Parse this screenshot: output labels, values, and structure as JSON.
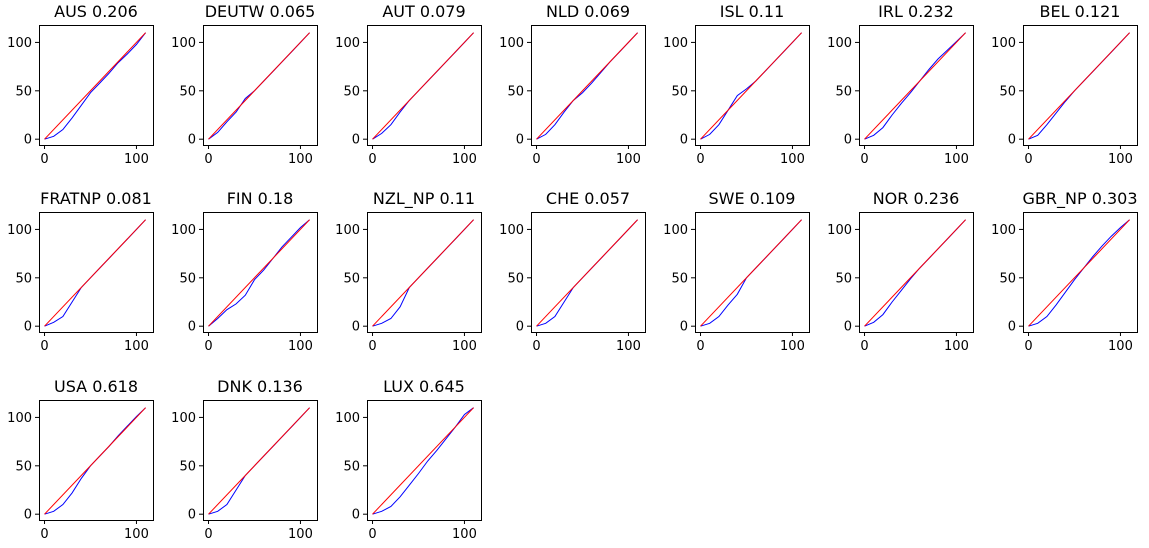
{
  "chart_data": [
    {
      "type": "line",
      "title": "AUS 0.206",
      "xlim": [
        -6,
        118
      ],
      "ylim": [
        -6,
        118
      ],
      "xticks": [
        0,
        100
      ],
      "yticks": [
        0,
        50,
        100
      ],
      "series": [
        {
          "name": "curve",
          "color": "#0000ff",
          "x": [
            0,
            10,
            20,
            30,
            40,
            50,
            60,
            70,
            80,
            90,
            100,
            110
          ],
          "y": [
            0,
            3,
            10,
            22,
            35,
            48,
            58,
            68,
            79,
            88,
            98,
            110
          ]
        },
        {
          "name": "equality",
          "color": "#ff0000",
          "x": [
            0,
            110
          ],
          "y": [
            0,
            110
          ]
        }
      ]
    },
    {
      "type": "line",
      "title": "DEUTW 0.065",
      "xlim": [
        -6,
        118
      ],
      "ylim": [
        -6,
        118
      ],
      "xticks": [
        0,
        100
      ],
      "yticks": [
        0,
        50,
        100
      ],
      "series": [
        {
          "name": "curve",
          "color": "#0000ff",
          "x": [
            0,
            10,
            20,
            30,
            40,
            50,
            60,
            70,
            80,
            90,
            100,
            110
          ],
          "y": [
            0,
            7,
            18,
            28,
            42,
            50,
            60,
            70,
            80,
            90,
            100,
            110
          ]
        },
        {
          "name": "equality",
          "color": "#ff0000",
          "x": [
            0,
            110
          ],
          "y": [
            0,
            110
          ]
        }
      ]
    },
    {
      "type": "line",
      "title": "AUT 0.079",
      "xlim": [
        -6,
        118
      ],
      "ylim": [
        -6,
        118
      ],
      "xticks": [
        0,
        100
      ],
      "yticks": [
        0,
        50,
        100
      ],
      "series": [
        {
          "name": "curve",
          "color": "#0000ff",
          "x": [
            0,
            10,
            20,
            30,
            40,
            50,
            60,
            70,
            80,
            90,
            100,
            110
          ],
          "y": [
            0,
            6,
            15,
            28,
            40,
            50,
            60,
            70,
            80,
            90,
            100,
            110
          ]
        },
        {
          "name": "equality",
          "color": "#ff0000",
          "x": [
            0,
            110
          ],
          "y": [
            0,
            110
          ]
        }
      ]
    },
    {
      "type": "line",
      "title": "NLD 0.069",
      "xlim": [
        -6,
        118
      ],
      "ylim": [
        -6,
        118
      ],
      "xticks": [
        0,
        100
      ],
      "yticks": [
        0,
        50,
        100
      ],
      "series": [
        {
          "name": "curve",
          "color": "#0000ff",
          "x": [
            0,
            10,
            20,
            30,
            40,
            50,
            60,
            70,
            80,
            90,
            100,
            110
          ],
          "y": [
            0,
            5,
            15,
            28,
            40,
            48,
            58,
            69,
            80,
            90,
            100,
            110
          ]
        },
        {
          "name": "equality",
          "color": "#ff0000",
          "x": [
            0,
            110
          ],
          "y": [
            0,
            110
          ]
        }
      ]
    },
    {
      "type": "line",
      "title": "ISL 0.11",
      "xlim": [
        -6,
        118
      ],
      "ylim": [
        -6,
        118
      ],
      "xticks": [
        0,
        100
      ],
      "yticks": [
        0,
        50,
        100
      ],
      "series": [
        {
          "name": "curve",
          "color": "#0000ff",
          "x": [
            0,
            10,
            20,
            30,
            40,
            50,
            60,
            70,
            80,
            90,
            100,
            110
          ],
          "y": [
            0,
            5,
            15,
            30,
            45,
            52,
            60,
            70,
            80,
            90,
            100,
            110
          ]
        },
        {
          "name": "equality",
          "color": "#ff0000",
          "x": [
            0,
            110
          ],
          "y": [
            0,
            110
          ]
        }
      ]
    },
    {
      "type": "line",
      "title": "IRL 0.232",
      "xlim": [
        -6,
        118
      ],
      "ylim": [
        -6,
        118
      ],
      "xticks": [
        0,
        100
      ],
      "yticks": [
        0,
        50,
        100
      ],
      "series": [
        {
          "name": "curve",
          "color": "#0000ff",
          "x": [
            0,
            10,
            20,
            30,
            40,
            50,
            60,
            70,
            80,
            90,
            100,
            110
          ],
          "y": [
            0,
            4,
            12,
            25,
            37,
            48,
            60,
            72,
            83,
            92,
            101,
            110
          ]
        },
        {
          "name": "equality",
          "color": "#ff0000",
          "x": [
            0,
            110
          ],
          "y": [
            0,
            110
          ]
        }
      ]
    },
    {
      "type": "line",
      "title": "BEL 0.121",
      "xlim": [
        -6,
        118
      ],
      "ylim": [
        -6,
        118
      ],
      "xticks": [
        0,
        100
      ],
      "yticks": [
        0,
        50,
        100
      ],
      "series": [
        {
          "name": "curve",
          "color": "#0000ff",
          "x": [
            0,
            10,
            20,
            30,
            40,
            50,
            60,
            70,
            80,
            90,
            100,
            110
          ],
          "y": [
            0,
            4,
            15,
            27,
            39,
            50,
            60,
            70,
            80,
            90,
            100,
            110
          ]
        },
        {
          "name": "equality",
          "color": "#ff0000",
          "x": [
            0,
            110
          ],
          "y": [
            0,
            110
          ]
        }
      ]
    },
    {
      "type": "line",
      "title": "FRATNP 0.081",
      "xlim": [
        -6,
        118
      ],
      "ylim": [
        -6,
        118
      ],
      "xticks": [
        0,
        100
      ],
      "yticks": [
        0,
        50,
        100
      ],
      "series": [
        {
          "name": "curve",
          "color": "#0000ff",
          "x": [
            0,
            10,
            20,
            30,
            40,
            50,
            60,
            70,
            80,
            90,
            100,
            110
          ],
          "y": [
            0,
            4,
            10,
            25,
            40,
            50,
            60,
            70,
            80,
            90,
            100,
            110
          ]
        },
        {
          "name": "equality",
          "color": "#ff0000",
          "x": [
            0,
            110
          ],
          "y": [
            0,
            110
          ]
        }
      ]
    },
    {
      "type": "line",
      "title": "FIN 0.18",
      "xlim": [
        -6,
        118
      ],
      "ylim": [
        -6,
        118
      ],
      "xticks": [
        0,
        100
      ],
      "yticks": [
        0,
        50,
        100
      ],
      "series": [
        {
          "name": "curve",
          "color": "#0000ff",
          "x": [
            0,
            10,
            20,
            30,
            40,
            50,
            60,
            70,
            80,
            90,
            100,
            110
          ],
          "y": [
            0,
            8,
            17,
            23,
            32,
            48,
            58,
            70,
            82,
            92,
            102,
            110
          ]
        },
        {
          "name": "equality",
          "color": "#ff0000",
          "x": [
            0,
            110
          ],
          "y": [
            0,
            110
          ]
        }
      ]
    },
    {
      "type": "line",
      "title": "NZL_NP 0.11",
      "xlim": [
        -6,
        118
      ],
      "ylim": [
        -6,
        118
      ],
      "xticks": [
        0,
        100
      ],
      "yticks": [
        0,
        50,
        100
      ],
      "series": [
        {
          "name": "curve",
          "color": "#0000ff",
          "x": [
            0,
            10,
            20,
            30,
            40,
            50,
            60,
            70,
            80,
            90,
            100,
            110
          ],
          "y": [
            0,
            3,
            8,
            20,
            40,
            50,
            60,
            70,
            80,
            90,
            100,
            110
          ]
        },
        {
          "name": "equality",
          "color": "#ff0000",
          "x": [
            0,
            110
          ],
          "y": [
            0,
            110
          ]
        }
      ]
    },
    {
      "type": "line",
      "title": "CHE 0.057",
      "xlim": [
        -6,
        118
      ],
      "ylim": [
        -6,
        118
      ],
      "xticks": [
        0,
        100
      ],
      "yticks": [
        0,
        50,
        100
      ],
      "series": [
        {
          "name": "curve",
          "color": "#0000ff",
          "x": [
            0,
            10,
            20,
            30,
            40,
            50,
            60,
            70,
            80,
            90,
            100,
            110
          ],
          "y": [
            0,
            3,
            10,
            25,
            40,
            50,
            60,
            70,
            80,
            90,
            100,
            110
          ]
        },
        {
          "name": "equality",
          "color": "#ff0000",
          "x": [
            0,
            110
          ],
          "y": [
            0,
            110
          ]
        }
      ]
    },
    {
      "type": "line",
      "title": "SWE 0.109",
      "xlim": [
        -6,
        118
      ],
      "ylim": [
        -6,
        118
      ],
      "xticks": [
        0,
        100
      ],
      "yticks": [
        0,
        50,
        100
      ],
      "series": [
        {
          "name": "curve",
          "color": "#0000ff",
          "x": [
            0,
            10,
            20,
            30,
            40,
            50,
            60,
            70,
            80,
            90,
            100,
            110
          ],
          "y": [
            0,
            3,
            10,
            22,
            33,
            50,
            60,
            70,
            80,
            90,
            100,
            110
          ]
        },
        {
          "name": "equality",
          "color": "#ff0000",
          "x": [
            0,
            110
          ],
          "y": [
            0,
            110
          ]
        }
      ]
    },
    {
      "type": "line",
      "title": "NOR 0.236",
      "xlim": [
        -6,
        118
      ],
      "ylim": [
        -6,
        118
      ],
      "xticks": [
        0,
        100
      ],
      "yticks": [
        0,
        50,
        100
      ],
      "series": [
        {
          "name": "curve",
          "color": "#0000ff",
          "x": [
            0,
            10,
            20,
            30,
            40,
            50,
            60,
            70,
            80,
            90,
            100,
            110
          ],
          "y": [
            0,
            4,
            12,
            25,
            37,
            49,
            60,
            70,
            80,
            90,
            100,
            110
          ]
        },
        {
          "name": "equality",
          "color": "#ff0000",
          "x": [
            0,
            110
          ],
          "y": [
            0,
            110
          ]
        }
      ]
    },
    {
      "type": "line",
      "title": "GBR_NP 0.303",
      "xlim": [
        -6,
        118
      ],
      "ylim": [
        -6,
        118
      ],
      "xticks": [
        0,
        100
      ],
      "yticks": [
        0,
        50,
        100
      ],
      "series": [
        {
          "name": "curve",
          "color": "#0000ff",
          "x": [
            0,
            10,
            20,
            30,
            40,
            50,
            60,
            70,
            80,
            90,
            100,
            110
          ],
          "y": [
            0,
            3,
            10,
            22,
            35,
            48,
            60,
            72,
            83,
            93,
            102,
            110
          ]
        },
        {
          "name": "equality",
          "color": "#ff0000",
          "x": [
            0,
            110
          ],
          "y": [
            0,
            110
          ]
        }
      ]
    },
    {
      "type": "line",
      "title": "USA 0.618",
      "xlim": [
        -6,
        118
      ],
      "ylim": [
        -6,
        118
      ],
      "xticks": [
        0,
        100
      ],
      "yticks": [
        0,
        50,
        100
      ],
      "series": [
        {
          "name": "curve",
          "color": "#0000ff",
          "x": [
            0,
            10,
            20,
            30,
            40,
            50,
            60,
            70,
            80,
            90,
            100,
            110
          ],
          "y": [
            0,
            3,
            10,
            22,
            37,
            50,
            60,
            70,
            81,
            91,
            101,
            110
          ]
        },
        {
          "name": "equality",
          "color": "#ff0000",
          "x": [
            0,
            110
          ],
          "y": [
            0,
            110
          ]
        }
      ]
    },
    {
      "type": "line",
      "title": "DNK 0.136",
      "xlim": [
        -6,
        118
      ],
      "ylim": [
        -6,
        118
      ],
      "xticks": [
        0,
        100
      ],
      "yticks": [
        0,
        50,
        100
      ],
      "series": [
        {
          "name": "curve",
          "color": "#0000ff",
          "x": [
            0,
            10,
            20,
            30,
            40,
            50,
            60,
            70,
            80,
            90,
            100,
            110
          ],
          "y": [
            0,
            3,
            10,
            25,
            40,
            50,
            60,
            70,
            80,
            90,
            100,
            110
          ]
        },
        {
          "name": "equality",
          "color": "#ff0000",
          "x": [
            0,
            110
          ],
          "y": [
            0,
            110
          ]
        }
      ]
    },
    {
      "type": "line",
      "title": "LUX 0.645",
      "xlim": [
        -6,
        118
      ],
      "ylim": [
        -6,
        118
      ],
      "xticks": [
        0,
        100
      ],
      "yticks": [
        0,
        50,
        100
      ],
      "series": [
        {
          "name": "curve",
          "color": "#0000ff",
          "x": [
            0,
            10,
            20,
            30,
            40,
            50,
            60,
            70,
            80,
            90,
            100,
            110
          ],
          "y": [
            0,
            3,
            8,
            18,
            30,
            42,
            55,
            66,
            78,
            90,
            103,
            110
          ]
        },
        {
          "name": "equality",
          "color": "#ff0000",
          "x": [
            0,
            110
          ],
          "y": [
            0,
            110
          ]
        }
      ]
    }
  ]
}
